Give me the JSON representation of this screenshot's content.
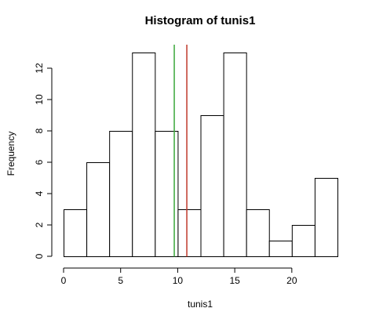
{
  "chart_data": {
    "type": "bar",
    "title": "Histogram of tunis1",
    "xlabel": "tunis1",
    "ylabel": "Frequency",
    "bin_edges": [
      0,
      2,
      4,
      6,
      8,
      10,
      12,
      14,
      16,
      18,
      20,
      22,
      24
    ],
    "counts": [
      3,
      6,
      8,
      13,
      8,
      3,
      9,
      13,
      3,
      1,
      2,
      5
    ],
    "x_ticks": [
      0,
      5,
      10,
      15,
      20
    ],
    "y_ticks": [
      0,
      2,
      4,
      6,
      8,
      10,
      12
    ],
    "xlim": [
      0,
      24
    ],
    "ylim": [
      0,
      13
    ],
    "grid": false,
    "vlines": [
      {
        "x": 9.7,
        "color": "#3aa83a"
      },
      {
        "x": 10.8,
        "color": "#c0392b"
      }
    ]
  }
}
